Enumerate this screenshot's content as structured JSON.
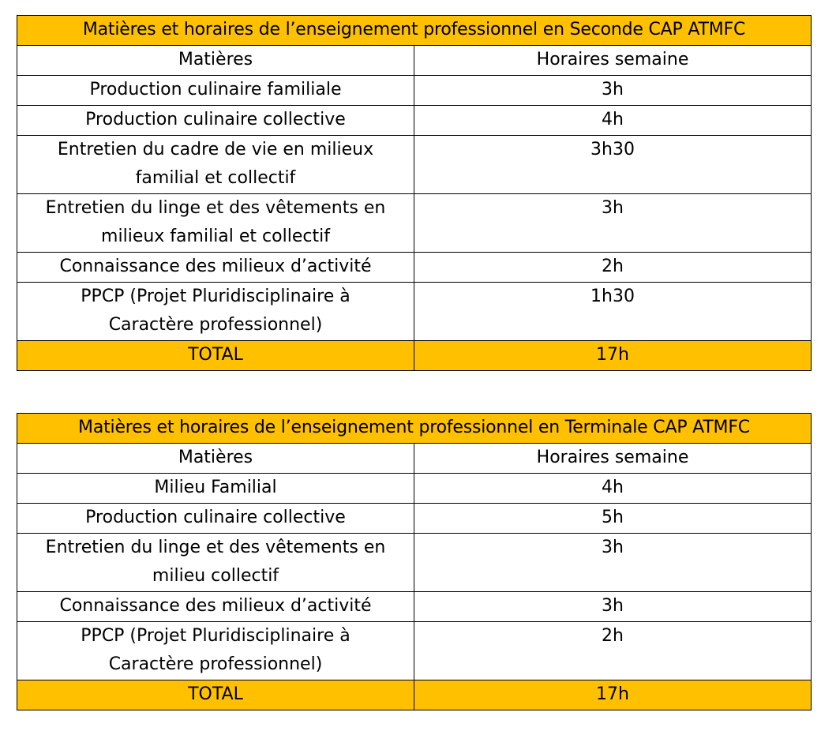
{
  "tables": [
    {
      "title": "Matières et horaires de l’enseignement professionnel en Seconde CAP ATMFC",
      "headers": {
        "subject": "Matières",
        "hours": "Horaires semaine"
      },
      "rows": [
        {
          "subject": "Production culinaire familiale",
          "hours": "3h"
        },
        {
          "subject": "Production culinaire collective",
          "hours": "4h"
        },
        {
          "subject": "Entretien du cadre de vie en milieux familial et collectif",
          "hours": "3h30"
        },
        {
          "subject": "Entretien du linge et des vêtements en milieux familial et collectif",
          "hours": "3h"
        },
        {
          "subject": "Connaissance des milieux d’activité",
          "hours": "2h"
        },
        {
          "subject": "PPCP (Projet Pluridisciplinaire à Caractère professionnel)",
          "hours": "1h30"
        }
      ],
      "total": {
        "label": "TOTAL",
        "hours": "17h"
      }
    },
    {
      "title": "Matières et horaires de l’enseignement professionnel en Terminale CAP ATMFC",
      "headers": {
        "subject": "Matières",
        "hours": "Horaires semaine"
      },
      "rows": [
        {
          "subject": "Milieu Familial",
          "hours": "4h"
        },
        {
          "subject": "Production culinaire collective",
          "hours": "5h"
        },
        {
          "subject": "Entretien du linge et des vêtements en milieu collectif",
          "hours": "3h"
        },
        {
          "subject": "Connaissance des milieux d’activité",
          "hours": "3h"
        },
        {
          "subject": "PPCP (Projet Pluridisciplinaire à Caractère professionnel)",
          "hours": "2h"
        }
      ],
      "total": {
        "label": "TOTAL",
        "hours": "17h"
      }
    }
  ],
  "colors": {
    "header_fill": "#FFC000",
    "border": "#000000"
  }
}
